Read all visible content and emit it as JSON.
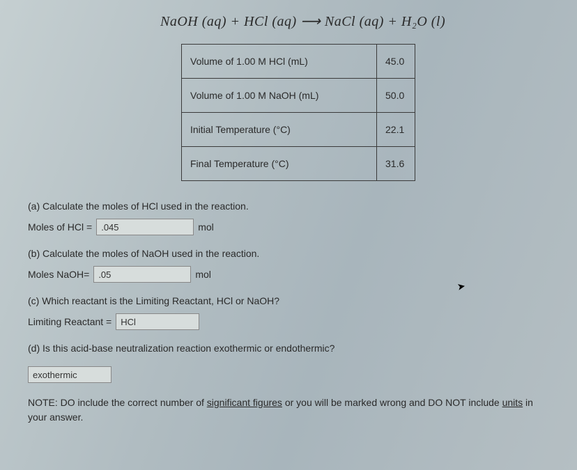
{
  "equation": "NaOH (aq) + HCl (aq) ⟶ NaCl (aq) + H₂O (l)",
  "table": {
    "rows": [
      {
        "label": "Volume of 1.00 M HCl (mL)",
        "value": "45.0"
      },
      {
        "label": "Volume of 1.00 M NaOH (mL)",
        "value": "50.0"
      },
      {
        "label": "Initial Temperature (°C)",
        "value": "22.1"
      },
      {
        "label": "Final Temperature (°C)",
        "value": "31.6"
      }
    ]
  },
  "qa": {
    "a_prompt": "(a) Calculate the moles of HCl used in the reaction.",
    "a_label": "Moles of HCl =",
    "a_value": ".045",
    "a_unit": "mol",
    "b_prompt": "(b) Calculate the moles of NaOH used in the reaction.",
    "b_label": "Moles NaOH=",
    "b_value": ".05",
    "b_unit": "mol",
    "c_prompt": "(c) Which reactant is the Limiting Reactant, HCl or NaOH?",
    "c_label": "Limiting Reactant =",
    "c_value": "HCl",
    "d_prompt": "(d) Is this acid-base neutralization reaction exothermic or endothermic?",
    "d_value": "exothermic"
  },
  "note": {
    "prefix": "NOTE: DO include the correct number of ",
    "u1": "significant figures",
    "mid": " or you will be marked wrong and DO NOT include ",
    "u2": "units",
    "suffix": " in your answer."
  }
}
